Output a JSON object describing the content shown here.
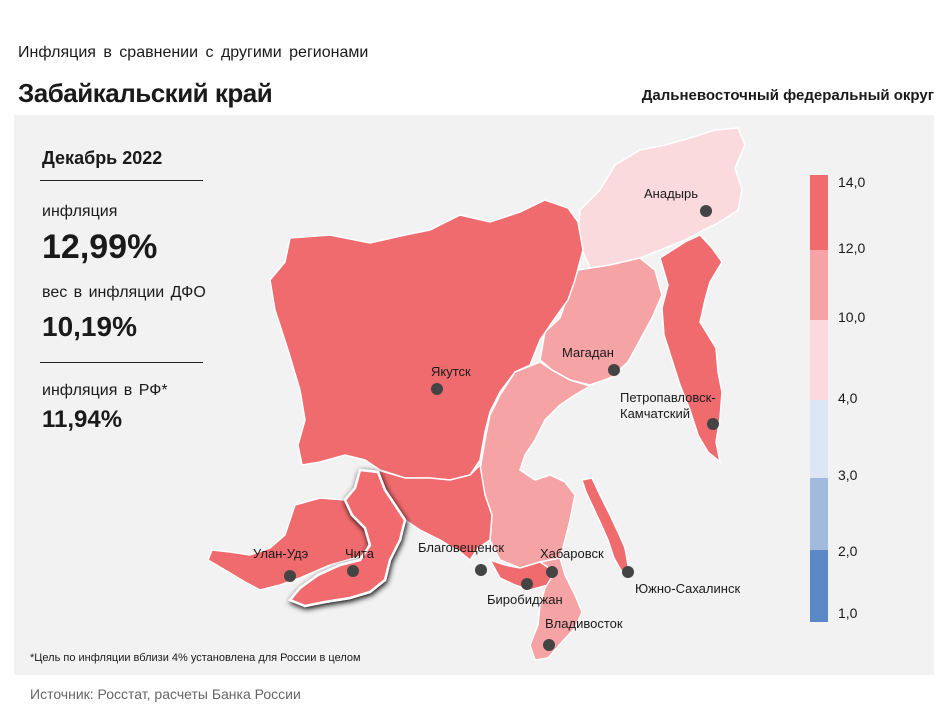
{
  "header": {
    "subtitle": "Инфляция  в сравнении  с другими  регионами",
    "region": "Забайкальский край",
    "district": "Дальневосточный федеральный округ"
  },
  "stats": {
    "period": "Декабрь 2022",
    "inflation_label": "инфляция",
    "inflation_value": "12,99%",
    "weight_label": "вес в инфляции  ДФО",
    "weight_value": "10,19%",
    "rf_label": "инфляция  в РФ*",
    "rf_value": "11,94%"
  },
  "legend": {
    "labels": [
      "14,0",
      "12,0",
      "10,0",
      "4,0",
      "3,0",
      "2,0",
      "1,0"
    ],
    "colors": [
      "#f06b6e",
      "#f6a3a5",
      "#fadadd",
      "#dde6f4",
      "#a2bbdc",
      "#5b88c6"
    ]
  },
  "cities": {
    "anadyr": "Анадырь",
    "magadan": "Магадан",
    "yakutsk": "Якутск",
    "petropavlovsk_1": "Петропавловск-",
    "petropavlovsk_2": "Камчатский",
    "ulan_ude": "Улан-Удэ",
    "chita": "Чита",
    "blagoveshchensk": "Благовещенск",
    "khabarovsk": "Хабаровск",
    "birobidzhan": "Биробиджан",
    "yuzhno": "Южно-Сахалинск",
    "vladivostok": "Владивосток"
  },
  "colors": {
    "high": "#f06b6e",
    "mid": "#f6a3a5",
    "low": "#fadadd",
    "panel": "#f2f2f2"
  },
  "footnote": "*Цель по инфляции вблизи 4% установлена для России в целом",
  "source": "Источник: Росстат, расчеты Банка России"
}
